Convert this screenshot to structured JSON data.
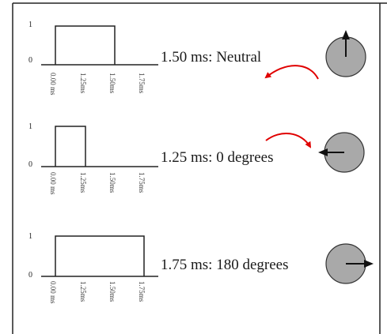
{
  "panels": [
    {
      "y_high": "1",
      "y_low": "0",
      "ticks": [
        "0.00 ms",
        "1.25ms",
        "1.50ms",
        "1.75ms"
      ],
      "pulse_width_ms": 1.5,
      "caption": "1.50 ms: Neutral",
      "dial_direction": "up"
    },
    {
      "y_high": "1",
      "y_low": "0",
      "ticks": [
        "0.00 ms",
        "1.25ms",
        "1.50ms",
        "1.75ms"
      ],
      "pulse_width_ms": 1.25,
      "caption": "1.25 ms: 0 degrees",
      "dial_direction": "left"
    },
    {
      "y_high": "1",
      "y_low": "0",
      "ticks": [
        "0.00 ms",
        "1.25ms",
        "1.50ms",
        "1.75ms"
      ],
      "pulse_width_ms": 1.75,
      "caption": "1.75 ms: 180 degrees",
      "dial_direction": "right"
    }
  ],
  "colors": {
    "dial_fill": "#a9a9a9",
    "rotation_arrow": "#e00000",
    "line": "#222222"
  }
}
